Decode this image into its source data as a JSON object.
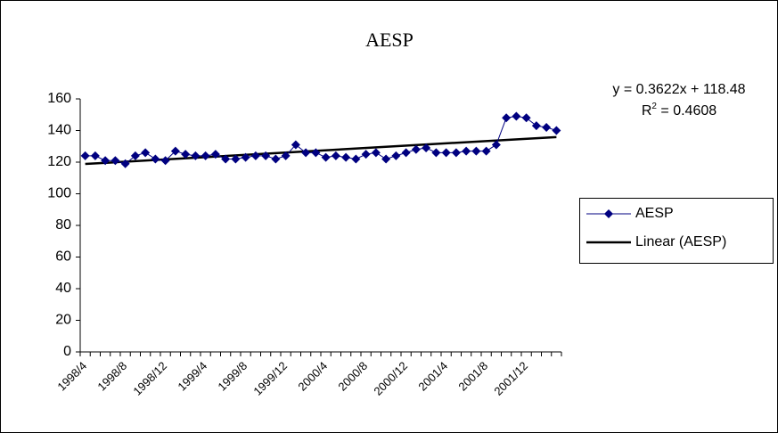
{
  "chart_data": {
    "type": "line",
    "title": "AESP",
    "categories": [
      "1998/4",
      null,
      null,
      null,
      "1998/8",
      null,
      null,
      null,
      "1998/12",
      null,
      null,
      null,
      "1999/4",
      null,
      null,
      null,
      "1999/8",
      null,
      null,
      null,
      "1999/12",
      null,
      null,
      null,
      "2000/4",
      null,
      null,
      null,
      "2000/8",
      null,
      null,
      null,
      "2000/12",
      null,
      null,
      null,
      "2001/4",
      null,
      null,
      null,
      "2001/8",
      null,
      null,
      null,
      "2001/12",
      null,
      null,
      null
    ],
    "series": [
      {
        "name": "AESP",
        "color": "#000080",
        "values": [
          124,
          124,
          121,
          121,
          119,
          124,
          126,
          122,
          121,
          127,
          125,
          124,
          124,
          125,
          122,
          122,
          123,
          124,
          124,
          122,
          124,
          131,
          126,
          126,
          123,
          124,
          123,
          122,
          125,
          126,
          122,
          124,
          126,
          128,
          129,
          126,
          126,
          126,
          127,
          127,
          127,
          131,
          148,
          149,
          148,
          143,
          142,
          140
        ]
      }
    ],
    "trendline": {
      "name": "Linear (AESP)",
      "color": "#000000",
      "slope": 0.3622,
      "intercept": 118.48,
      "equation": "y = 0.3622x + 118.48",
      "r2_base": "R",
      "r2_sup": "2",
      "r2_rest": " = 0.4608"
    },
    "ylim": [
      0,
      160
    ],
    "yticks": [
      0,
      20,
      40,
      60,
      80,
      100,
      120,
      140,
      160
    ]
  }
}
